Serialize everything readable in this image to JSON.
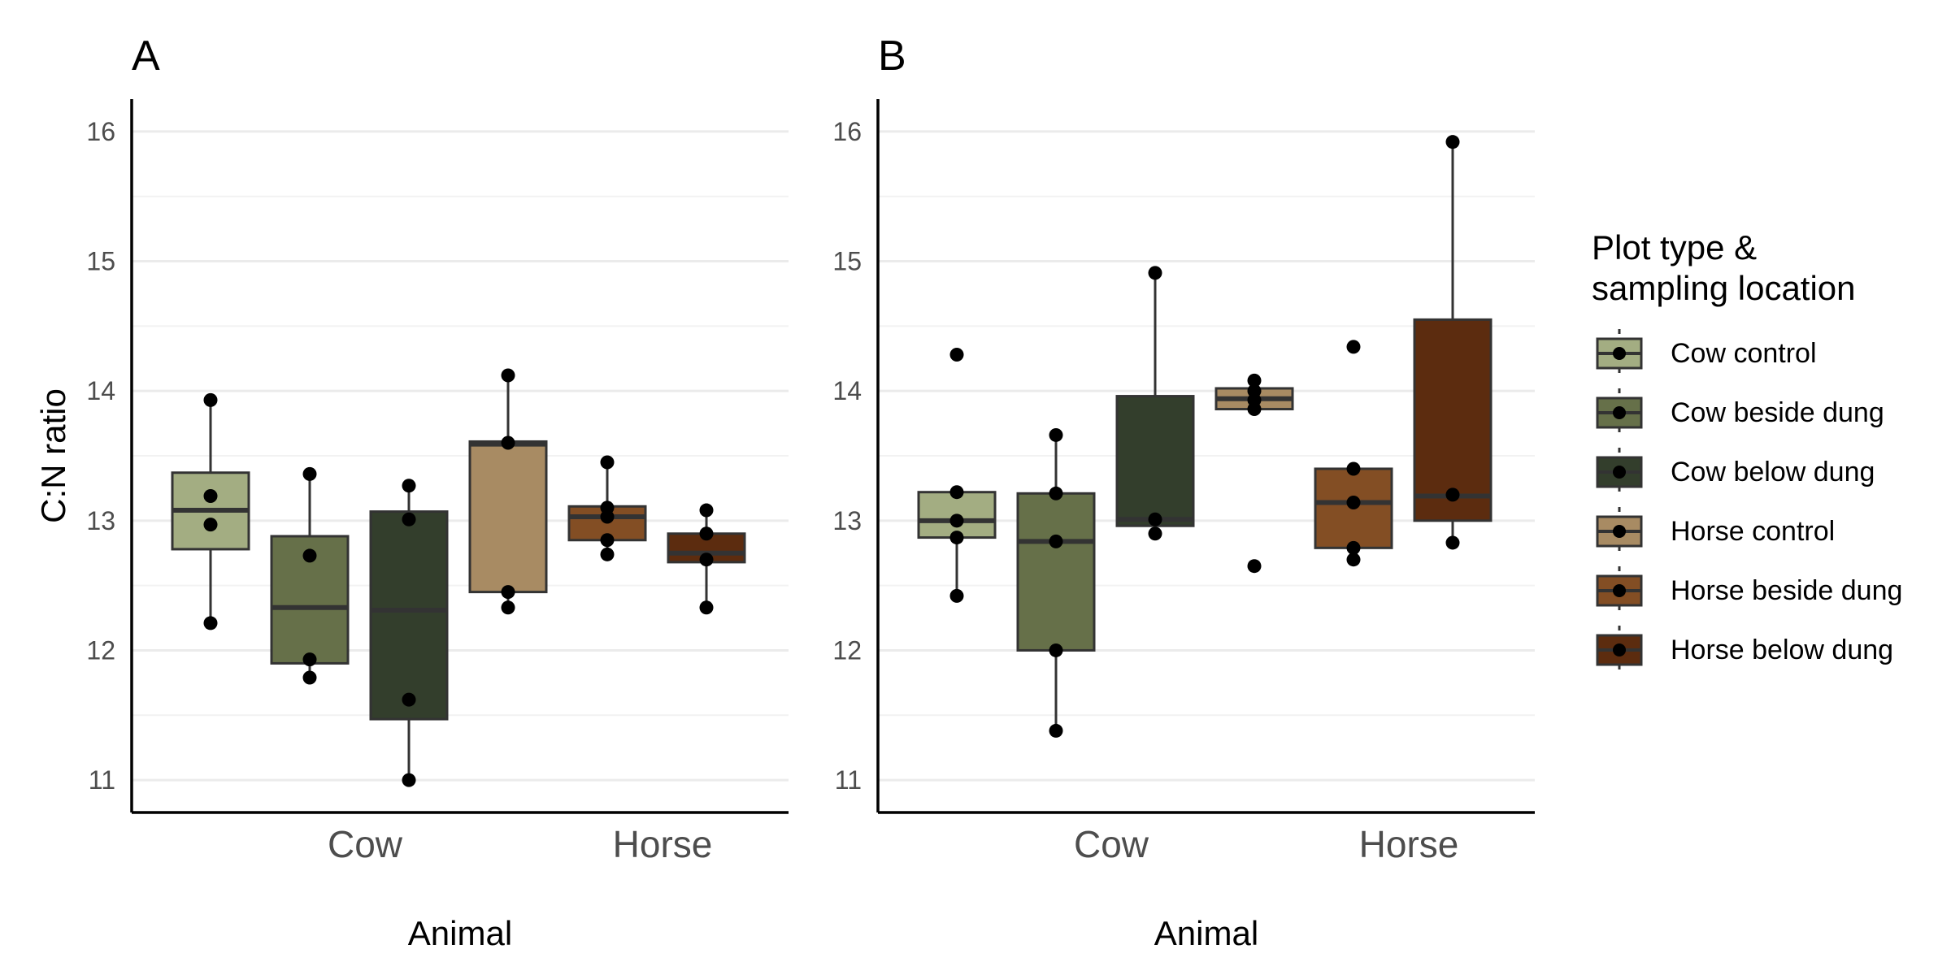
{
  "chart_data": {
    "type": "box",
    "ylabel": "C:N ratio",
    "xlabel": "Animal",
    "ylim": [
      10.75,
      16.25
    ],
    "yticks": [
      11,
      12,
      13,
      14,
      15,
      16
    ],
    "categories": [
      "Cow",
      "Horse"
    ],
    "legend": {
      "title_lines": [
        "Plot type &",
        "sampling location"
      ],
      "placement": "right"
    },
    "groups": [
      {
        "name": "Cow control",
        "color": "#a3ad82",
        "animal": "Cow"
      },
      {
        "name": "Cow beside dung",
        "color": "#667049",
        "animal": "Cow"
      },
      {
        "name": "Cow below dung",
        "color": "#333e2c",
        "animal": "Cow"
      },
      {
        "name": "Horse control",
        "color": "#a88b63",
        "animal": "Horse"
      },
      {
        "name": "Horse beside dung",
        "color": "#834e24",
        "animal": "Horse"
      },
      {
        "name": "Horse below dung",
        "color": "#5c2c0f",
        "animal": "Horse"
      }
    ],
    "panels": [
      {
        "label": "A",
        "boxes": [
          {
            "group": "Cow control",
            "whisker_low": 12.2,
            "q1": 12.78,
            "median": 13.08,
            "q3": 13.37,
            "whisker_high": 13.93,
            "points": [
              13.93,
              13.19,
              12.97,
              12.21
            ]
          },
          {
            "group": "Cow beside dung",
            "whisker_low": 11.78,
            "q1": 11.9,
            "median": 12.33,
            "q3": 12.88,
            "whisker_high": 13.36,
            "points": [
              13.36,
              12.73,
              11.93,
              11.79
            ]
          },
          {
            "group": "Cow below dung",
            "whisker_low": 11.0,
            "q1": 11.47,
            "median": 12.31,
            "q3": 13.07,
            "whisker_high": 13.27,
            "points": [
              13.27,
              13.01,
              11.62,
              11.0
            ]
          },
          {
            "group": "Horse control",
            "whisker_low": 12.33,
            "q1": 12.45,
            "median": 13.59,
            "q3": 13.61,
            "whisker_high": 14.12,
            "points": [
              14.12,
              13.6,
              12.45,
              12.33
            ]
          },
          {
            "group": "Horse beside dung",
            "whisker_low": 12.74,
            "q1": 12.85,
            "median": 13.03,
            "q3": 13.11,
            "whisker_high": 13.45,
            "points": [
              13.45,
              13.1,
              13.03,
              12.85,
              12.74
            ]
          },
          {
            "group": "Horse below dung",
            "whisker_low": 12.33,
            "q1": 12.68,
            "median": 12.75,
            "q3": 12.9,
            "whisker_high": 13.08,
            "points": [
              13.08,
              12.9,
              12.7,
              12.33
            ]
          }
        ]
      },
      {
        "label": "B",
        "boxes": [
          {
            "group": "Cow control",
            "whisker_low": 12.42,
            "q1": 12.87,
            "median": 13.0,
            "q3": 13.22,
            "whisker_high": 13.22,
            "points": [
              14.28,
              13.22,
              13.0,
              12.87,
              12.42
            ]
          },
          {
            "group": "Cow beside dung",
            "whisker_low": 11.38,
            "q1": 12.0,
            "median": 12.84,
            "q3": 13.21,
            "whisker_high": 13.66,
            "points": [
              13.66,
              13.21,
              12.84,
              12.0,
              11.38
            ]
          },
          {
            "group": "Cow below dung",
            "whisker_low": 12.9,
            "q1": 12.96,
            "median": 13.01,
            "q3": 13.96,
            "whisker_high": 14.91,
            "points": [
              14.91,
              13.01,
              12.9
            ]
          },
          {
            "group": "Horse control",
            "whisker_low": 13.86,
            "q1": 13.86,
            "median": 13.94,
            "q3": 14.02,
            "whisker_high": 14.02,
            "points": [
              14.08,
              14.0,
              13.93,
              13.86,
              12.65
            ]
          },
          {
            "group": "Horse beside dung",
            "whisker_low": 12.7,
            "q1": 12.79,
            "median": 13.14,
            "q3": 13.4,
            "whisker_high": 13.4,
            "points": [
              14.34,
              13.4,
              13.14,
              12.79,
              12.7
            ]
          },
          {
            "group": "Horse below dung",
            "whisker_low": 12.82,
            "q1": 13.0,
            "median": 13.19,
            "q3": 14.55,
            "whisker_high": 15.92,
            "points": [
              15.92,
              13.2,
              12.83
            ]
          }
        ]
      }
    ]
  }
}
